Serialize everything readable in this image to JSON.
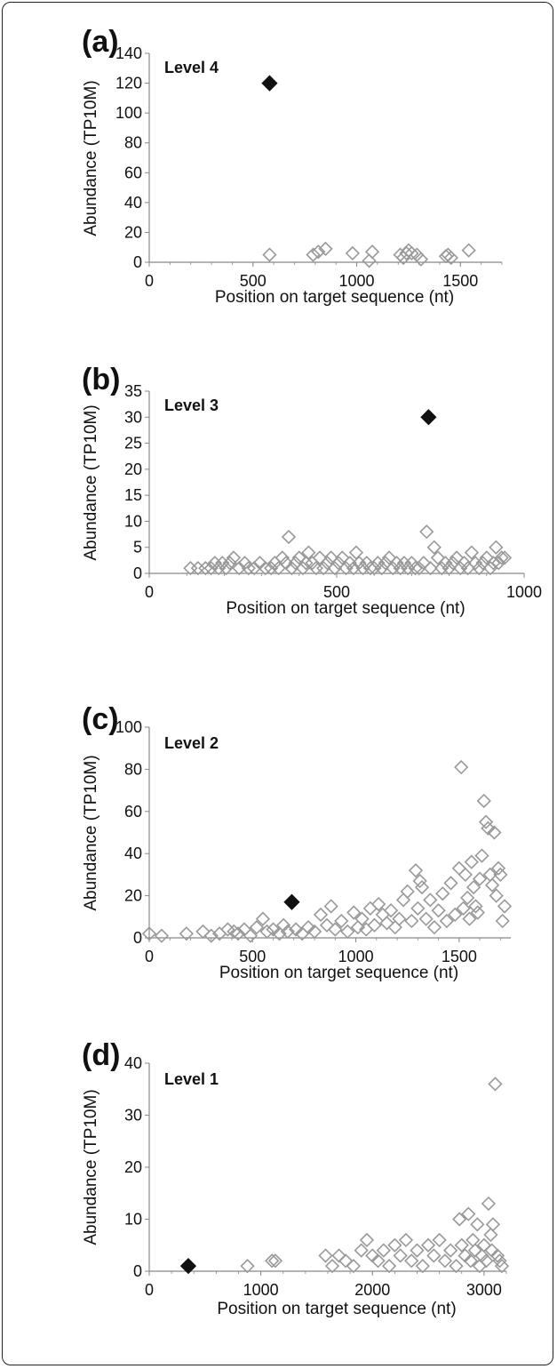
{
  "chart_data": [
    {
      "panel_label": "(a)",
      "level_label": "Level 4",
      "type": "scatter",
      "xlabel": "Position on target sequence (nt)",
      "ylabel": "Abundance (TP10M)",
      "xlim": [
        0,
        1700
      ],
      "ylim": [
        0,
        140
      ],
      "x_ticks": [
        0,
        500,
        1000,
        1500
      ],
      "y_ticks": [
        0,
        20,
        40,
        60,
        80,
        100,
        120,
        140
      ],
      "y_tick_labels": [
        "0",
        "20",
        "40",
        "60",
        "80",
        "100",
        "120",
        "140"
      ],
      "x_tick_labels": [
        "0",
        "500",
        "1000",
        "1500"
      ],
      "highlighted_point": {
        "x": 580,
        "y": 120
      },
      "series": [
        {
          "x": [
            580,
            790,
            815,
            850,
            980,
            1060,
            1075,
            1210,
            1225,
            1240,
            1250,
            1265,
            1290,
            1310,
            1430,
            1440,
            1455,
            1540
          ],
          "y": [
            5,
            5,
            7,
            9,
            6,
            1,
            7,
            5,
            3,
            6,
            8,
            6,
            5,
            2,
            4,
            5,
            3,
            8
          ]
        }
      ]
    },
    {
      "panel_label": "(b)",
      "level_label": "Level 3",
      "type": "scatter",
      "xlabel": "Position on target sequence (nt)",
      "ylabel": "Abundance (TP10M)",
      "xlim": [
        0,
        1000
      ],
      "ylim": [
        0,
        35
      ],
      "x_ticks": [
        0,
        500,
        1000
      ],
      "x_tick_labels": [
        "0",
        "500",
        "1000"
      ],
      "y_ticks": [
        0,
        5,
        10,
        15,
        20,
        25,
        30,
        35
      ],
      "y_tick_labels": [
        "0",
        "5",
        "10",
        "15",
        "20",
        "25",
        "30",
        "35"
      ],
      "highlighted_point": {
        "x": 745,
        "y": 30
      },
      "series": [
        {
          "x": [
            110,
            130,
            150,
            165,
            175,
            185,
            195,
            205,
            215,
            225,
            240,
            255,
            265,
            280,
            295,
            310,
            325,
            335,
            345,
            355,
            365,
            372,
            380,
            390,
            400,
            410,
            418,
            425,
            435,
            445,
            455,
            465,
            475,
            485,
            495,
            505,
            515,
            525,
            535,
            545,
            552,
            560,
            570,
            580,
            590,
            600,
            610,
            620,
            630,
            640,
            650,
            660,
            670,
            680,
            690,
            700,
            710,
            720,
            732,
            740,
            750,
            760,
            770,
            780,
            790,
            800,
            810,
            820,
            830,
            840,
            850,
            860,
            870,
            880,
            890,
            900,
            910,
            918,
            925,
            932,
            940,
            948
          ],
          "y": [
            1,
            1,
            1,
            1,
            2,
            1,
            2,
            1,
            2,
            3,
            1,
            2,
            1,
            1,
            2,
            1,
            1,
            2,
            1,
            3,
            2,
            7,
            1,
            2,
            3,
            1,
            2,
            4,
            2,
            1,
            3,
            1,
            2,
            3,
            1,
            2,
            3,
            1,
            2,
            1,
            4,
            2,
            1,
            2,
            1,
            1,
            2,
            1,
            2,
            3,
            1,
            2,
            1,
            2,
            1,
            2,
            1,
            1,
            2,
            8,
            1,
            5,
            3,
            1,
            2,
            1,
            2,
            3,
            1,
            2,
            1,
            4,
            2,
            1,
            2,
            3,
            1,
            2,
            5,
            2,
            3,
            3
          ]
        }
      ]
    },
    {
      "panel_label": "(c)",
      "level_label": "Level 2",
      "type": "scatter",
      "xlabel": "Position on target sequence (nt)",
      "ylabel": "Abundance (TP10M)",
      "xlim": [
        0,
        1750
      ],
      "ylim": [
        0,
        100
      ],
      "x_ticks": [
        0,
        500,
        1000,
        1500
      ],
      "x_tick_labels": [
        "0",
        "500",
        "1000",
        "1500"
      ],
      "y_ticks": [
        0,
        20,
        40,
        60,
        80,
        100
      ],
      "y_tick_labels": [
        "0",
        "20",
        "40",
        "60",
        "80",
        "100"
      ],
      "highlighted_point": {
        "x": 690,
        "y": 17
      },
      "series": [
        {
          "x": [
            0,
            60,
            180,
            260,
            300,
            340,
            380,
            410,
            430,
            460,
            490,
            520,
            550,
            570,
            600,
            630,
            650,
            670,
            710,
            740,
            770,
            800,
            830,
            860,
            880,
            900,
            930,
            960,
            990,
            1010,
            1030,
            1050,
            1070,
            1090,
            1110,
            1130,
            1150,
            1170,
            1190,
            1210,
            1230,
            1250,
            1270,
            1290,
            1300,
            1310,
            1320,
            1340,
            1360,
            1380,
            1400,
            1420,
            1440,
            1460,
            1480,
            1500,
            1510,
            1520,
            1530,
            1540,
            1550,
            1560,
            1570,
            1580,
            1590,
            1600,
            1610,
            1620,
            1630,
            1640,
            1650,
            1660,
            1670,
            1680,
            1690,
            1700,
            1710,
            1720
          ],
          "y": [
            2,
            1,
            2,
            3,
            1,
            2,
            4,
            3,
            2,
            4,
            1,
            5,
            9,
            3,
            4,
            2,
            6,
            3,
            4,
            2,
            5,
            3,
            11,
            6,
            15,
            4,
            8,
            3,
            12,
            5,
            9,
            4,
            14,
            6,
            16,
            11,
            7,
            13,
            5,
            9,
            18,
            22,
            8,
            32,
            14,
            27,
            24,
            9,
            18,
            5,
            13,
            21,
            8,
            26,
            11,
            33,
            81,
            14,
            30,
            19,
            9,
            36,
            24,
            15,
            12,
            28,
            39,
            65,
            55,
            52,
            30,
            25,
            50,
            20,
            33,
            30,
            8,
            15
          ]
        }
      ]
    },
    {
      "panel_label": "(d)",
      "level_label": "Level 1",
      "type": "scatter",
      "xlabel": "Position on target sequence (nt)",
      "ylabel": "Abundance (TP10M)",
      "xlim": [
        0,
        3200
      ],
      "ylim": [
        0,
        40
      ],
      "x_ticks": [
        0,
        1000,
        2000,
        3000
      ],
      "x_tick_labels": [
        "0",
        "1000",
        "2000",
        "3000"
      ],
      "y_ticks": [
        0,
        10,
        20,
        30,
        40
      ],
      "y_tick_labels": [
        "0",
        "10",
        "20",
        "30",
        "40"
      ],
      "highlighted_point": {
        "x": 350,
        "y": 1
      },
      "series": [
        {
          "x": [
            880,
            1100,
            1130,
            1580,
            1640,
            1700,
            1760,
            1830,
            1900,
            1950,
            2000,
            2050,
            2100,
            2150,
            2200,
            2250,
            2300,
            2350,
            2400,
            2450,
            2500,
            2550,
            2600,
            2650,
            2700,
            2750,
            2780,
            2800,
            2830,
            2860,
            2880,
            2900,
            2920,
            2940,
            2960,
            2980,
            3000,
            3020,
            3040,
            3060,
            3070,
            3080,
            3100,
            3120,
            3140,
            3160
          ],
          "y": [
            1,
            2,
            2,
            3,
            1,
            3,
            2,
            1,
            4,
            6,
            3,
            2,
            4,
            1,
            5,
            3,
            6,
            2,
            4,
            1,
            5,
            3,
            6,
            2,
            4,
            1,
            10,
            5,
            3,
            11,
            2,
            6,
            4,
            9,
            1,
            3,
            5,
            2,
            13,
            7,
            4,
            9,
            36,
            3,
            2,
            1
          ]
        }
      ]
    }
  ]
}
